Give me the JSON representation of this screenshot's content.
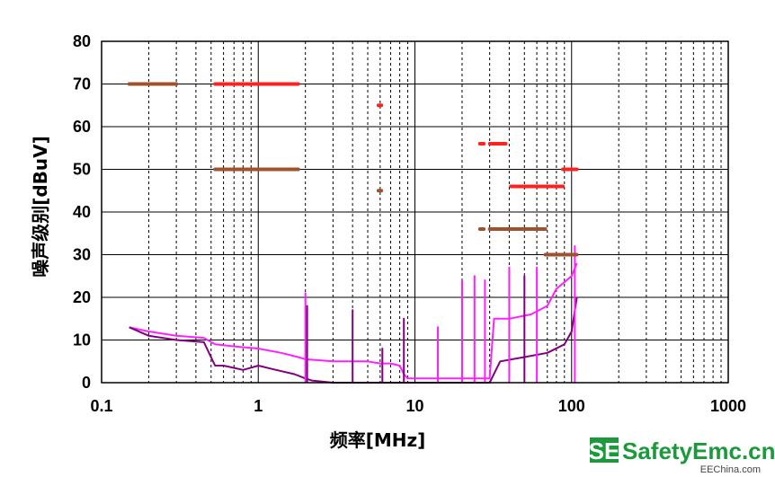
{
  "chart_data": {
    "type": "line",
    "xscale": "log",
    "xlim": [
      0.1,
      1000
    ],
    "ylim": [
      0,
      80
    ],
    "grid": true,
    "xlabel": "频率[MHz]",
    "ylabel": "噪声级别[dBuV]",
    "x_ticks": [
      "0.1",
      "1",
      "10",
      "100",
      "1000"
    ],
    "y_ticks": [
      "0",
      "10",
      "20",
      "30",
      "40",
      "50",
      "60",
      "70",
      "80"
    ],
    "limit_lines": [
      {
        "color": "#a0522d",
        "segments": [
          {
            "x": [
              0.15,
              0.3
            ],
            "y": 70
          },
          {
            "x": [
              0.53,
              1.8
            ],
            "y": 50
          },
          {
            "x": [
              5.85,
              6.1
            ],
            "y": 45
          },
          {
            "x": [
              26,
              27.5
            ],
            "y": 36
          },
          {
            "x": [
              30,
              68
            ],
            "y": 36
          },
          {
            "x": [
              68,
              108
            ],
            "y": 30
          }
        ]
      },
      {
        "color": "#ff2020",
        "segments": [
          {
            "x": [
              0.53,
              1.8
            ],
            "y": 70
          },
          {
            "x": [
              5.85,
              6.1
            ],
            "y": 65
          },
          {
            "x": [
              26,
              27.5
            ],
            "y": 56
          },
          {
            "x": [
              30,
              38
            ],
            "y": 56
          },
          {
            "x": [
              41,
              88
            ],
            "y": 46
          },
          {
            "x": [
              88,
              108
            ],
            "y": 50
          }
        ]
      }
    ],
    "series": [
      {
        "color": "#ff20ff",
        "x": [
          0.15,
          0.2,
          0.3,
          0.45,
          0.53,
          0.7,
          1.0,
          1.4,
          1.8,
          2.0,
          3.0,
          4.0,
          5.0,
          6.0,
          7.0,
          8.0,
          8.5,
          9.0,
          15,
          25,
          30,
          32,
          40,
          55,
          70,
          80,
          100,
          108
        ],
        "y": [
          13,
          12,
          11,
          10.5,
          9,
          8.5,
          8,
          7,
          6,
          5.5,
          5,
          5,
          5,
          4.5,
          4.5,
          4,
          2,
          1,
          1,
          1,
          1,
          15,
          15,
          16,
          18,
          22,
          25,
          28
        ]
      },
      {
        "color": "#800080",
        "x": [
          0.15,
          0.2,
          0.3,
          0.45,
          0.53,
          0.6,
          0.8,
          1.0,
          1.3,
          1.7,
          2.0,
          2.2,
          3.0,
          5.0,
          8.0,
          8.5,
          15,
          25,
          30,
          35,
          50,
          70,
          90,
          100,
          108
        ],
        "y": [
          13,
          11,
          10,
          9.5,
          4,
          4,
          3,
          4,
          3,
          2,
          1,
          0.5,
          0,
          0,
          0,
          0,
          0,
          0,
          0,
          5,
          6,
          7,
          9,
          12,
          20
        ]
      },
      {
        "color": "#ff20ff",
        "x": [
          2.0,
          2.0,
          2.0
        ],
        "y": [
          0,
          21,
          0
        ]
      },
      {
        "color": "#800080",
        "x": [
          2.05,
          2.05,
          2.05
        ],
        "y": [
          0,
          18,
          0
        ]
      },
      {
        "color": "#800080",
        "x": [
          4.0,
          4.0,
          4.0
        ],
        "y": [
          0,
          17,
          0
        ]
      },
      {
        "color": "#800080",
        "x": [
          6.2,
          6.2,
          6.2
        ],
        "y": [
          0,
          8,
          0
        ]
      },
      {
        "color": "#800080",
        "x": [
          8.5,
          8.5,
          8.5
        ],
        "y": [
          0,
          15,
          0
        ]
      },
      {
        "color": "#ff20ff",
        "x": [
          14,
          14,
          14
        ],
        "y": [
          0,
          13,
          0
        ]
      },
      {
        "color": "#ff20ff",
        "x": [
          20,
          20,
          20
        ],
        "y": [
          0,
          24,
          0
        ]
      },
      {
        "color": "#ff20ff",
        "x": [
          24,
          24,
          24
        ],
        "y": [
          0,
          25,
          0
        ]
      },
      {
        "color": "#ff20ff",
        "x": [
          28,
          28,
          28
        ],
        "y": [
          0,
          24,
          0
        ]
      },
      {
        "color": "#ff20ff",
        "x": [
          40,
          40,
          40
        ],
        "y": [
          0,
          27,
          0
        ]
      },
      {
        "color": "#800080",
        "x": [
          50,
          50,
          50
        ],
        "y": [
          0,
          25,
          0
        ]
      },
      {
        "color": "#ff20ff",
        "x": [
          60,
          60,
          60
        ],
        "y": [
          0,
          27,
          0
        ]
      },
      {
        "color": "#ff20ff",
        "x": [
          105,
          105,
          105
        ],
        "y": [
          0,
          32,
          0
        ]
      }
    ]
  },
  "watermark": {
    "badge": "SE",
    "site": "SafetyEmc.cn",
    "sub": "EEChina.com",
    "color": "#1a9a3a"
  }
}
